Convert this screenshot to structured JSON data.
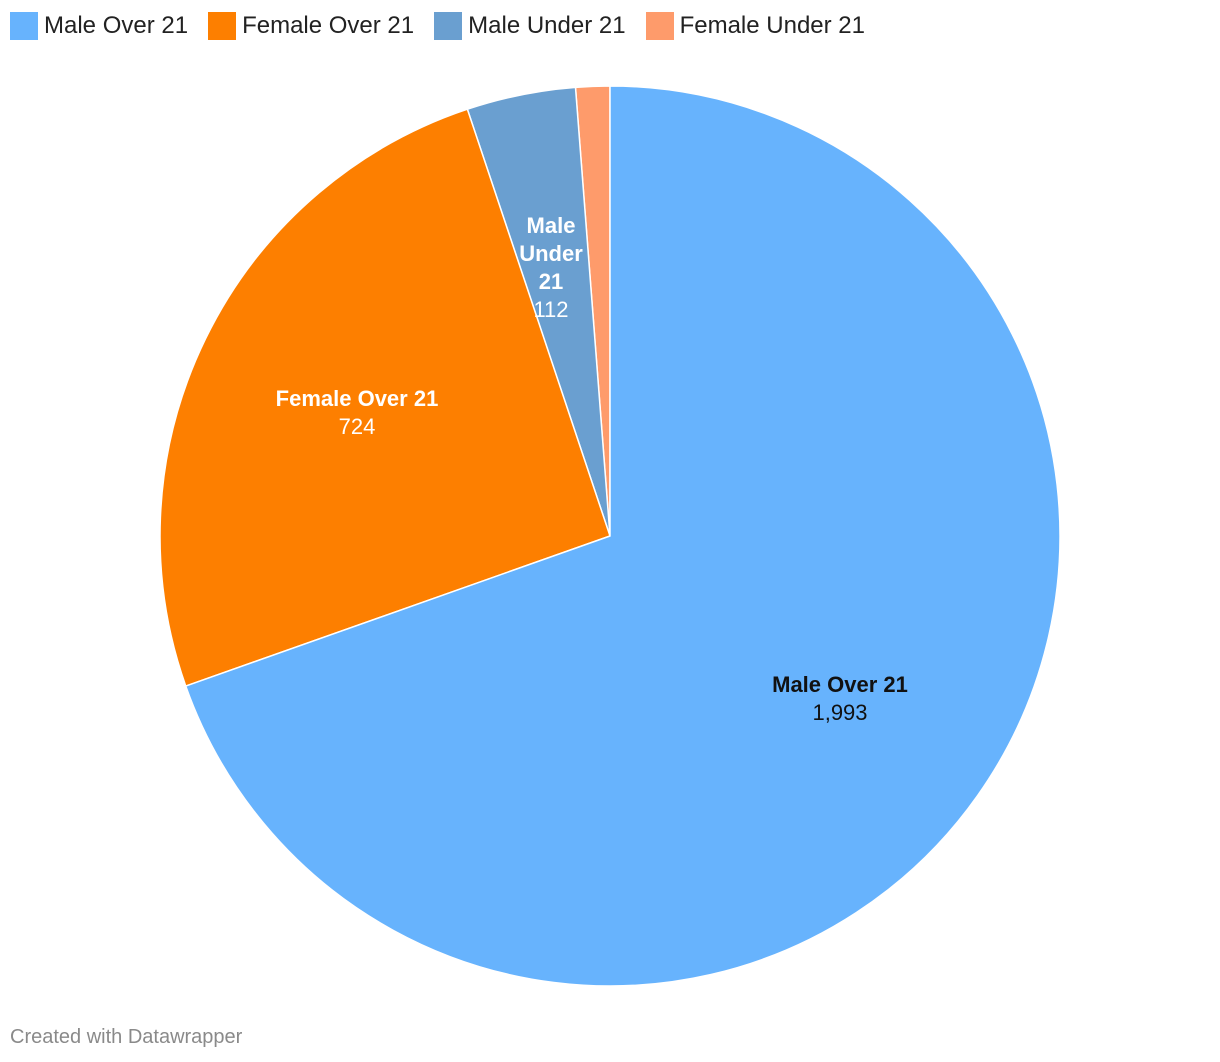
{
  "chart_data": {
    "type": "pie",
    "title": "",
    "legend_position": "top-left",
    "categories": [
      "Male Over 21",
      "Female Over 21",
      "Male Under 21",
      "Female Under 21"
    ],
    "values": [
      1993,
      724,
      112,
      35
    ],
    "value_labels": [
      "1,993",
      "724",
      "112",
      ""
    ],
    "colors": [
      "#67b3fd",
      "#fd7f00",
      "#6a9fd0",
      "#fe9b6b"
    ],
    "label_colors": [
      "#111111",
      "#ffffff",
      "#ffffff",
      "#ffffff"
    ],
    "slice_labels": [
      [
        "Male Over 21"
      ],
      [
        "Female Over 21"
      ],
      [
        "Male",
        "Under",
        "21"
      ],
      []
    ]
  },
  "footer": {
    "credit": "Created with Datawrapper"
  }
}
